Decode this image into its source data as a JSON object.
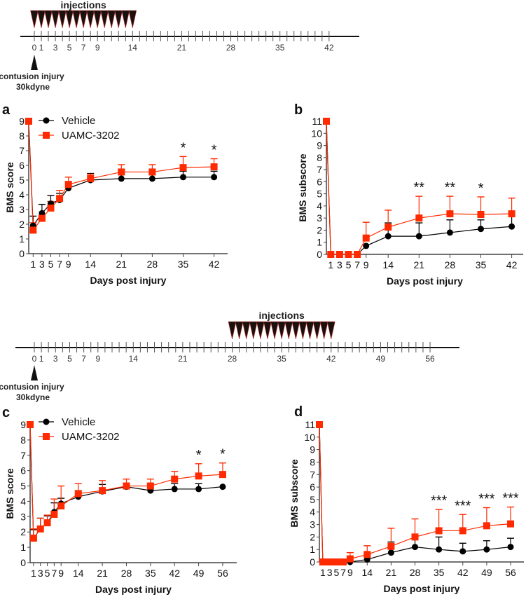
{
  "timelines": [
    {
      "injection_label": "injections",
      "tick_days_max": 42,
      "labeled_days": [
        0,
        1,
        3,
        5,
        7,
        9,
        14,
        21,
        28,
        35,
        42
      ],
      "injection_days": [
        0,
        14
      ],
      "injury_label": "contusion injury",
      "injury_force": "30kdyne"
    },
    {
      "injection_label": "injections",
      "tick_days_max": 56,
      "labeled_days": [
        0,
        1,
        3,
        5,
        7,
        9,
        14,
        21,
        28,
        35,
        42,
        49,
        56
      ],
      "injection_days": [
        28,
        42
      ],
      "injury_label": "contusion injury",
      "injury_force": "30kdyne"
    }
  ],
  "colors": {
    "vehicle": "#000000",
    "uamc": "#ff2a00"
  },
  "chart_data": [
    {
      "panel": "a",
      "type": "line",
      "ylabel": "BMS score",
      "xlabel": "Days post injury",
      "ylim": [
        0,
        9
      ],
      "yticks": [
        0,
        1,
        2,
        3,
        4,
        5,
        6,
        7,
        8,
        9
      ],
      "xticks": [
        1,
        3,
        5,
        7,
        9,
        14,
        21,
        28,
        35,
        42
      ],
      "x": [
        0,
        1,
        3,
        5,
        7,
        9,
        14,
        21,
        28,
        35,
        42
      ],
      "legend": [
        "Vehicle",
        "UAMC-3202"
      ],
      "series": [
        {
          "name": "Vehicle",
          "values": [
            9,
            1.9,
            2.75,
            3.4,
            3.65,
            4.45,
            5.0,
            5.1,
            5.1,
            5.2,
            5.2
          ],
          "upper": [
            null,
            2.55,
            3.35,
            3.95,
            4.1,
            4.9,
            5.45,
            5.65,
            5.4,
            5.6,
            5.6
          ]
        },
        {
          "name": "UAMC-3202",
          "values": [
            9,
            1.6,
            2.4,
            3.1,
            3.75,
            4.7,
            5.1,
            5.55,
            5.55,
            5.85,
            5.9
          ],
          "upper": [
            null,
            2.1,
            2.45,
            3.55,
            4.3,
            5.2,
            5.4,
            6.05,
            6.05,
            6.6,
            6.45
          ]
        }
      ],
      "significance": [
        {
          "x": 35,
          "label": "*"
        },
        {
          "x": 42,
          "label": "*"
        }
      ]
    },
    {
      "panel": "b",
      "type": "line",
      "ylabel": "BMS subscore",
      "xlabel": "Days post injury",
      "ylim": [
        0,
        11
      ],
      "yticks": [
        0,
        1,
        2,
        3,
        4,
        5,
        6,
        7,
        8,
        9,
        10,
        11
      ],
      "xticks": [
        1,
        3,
        5,
        7,
        9,
        14,
        21,
        28,
        35,
        42
      ],
      "x": [
        0,
        1,
        3,
        5,
        7,
        9,
        14,
        21,
        28,
        35,
        42
      ],
      "series": [
        {
          "name": "Vehicle",
          "values": [
            11,
            0,
            0,
            0,
            0,
            0.7,
            1.5,
            1.5,
            1.8,
            2.1,
            2.3
          ],
          "upper": [
            null,
            null,
            null,
            null,
            null,
            null,
            2.6,
            2.6,
            2.85,
            2.85,
            3.5
          ]
        },
        {
          "name": "UAMC-3202",
          "values": [
            11,
            0,
            0,
            0,
            0,
            1.35,
            2.25,
            3.0,
            3.35,
            3.3,
            3.35
          ],
          "upper": [
            null,
            null,
            null,
            null,
            null,
            2.65,
            3.65,
            4.8,
            4.8,
            4.75,
            4.65
          ]
        }
      ],
      "significance": [
        {
          "x": 21,
          "label": "**"
        },
        {
          "x": 28,
          "label": "**"
        },
        {
          "x": 35,
          "label": "*"
        }
      ]
    },
    {
      "panel": "c",
      "type": "line",
      "ylabel": "BMS score",
      "xlabel": "Days post injury",
      "ylim": [
        0,
        9
      ],
      "yticks": [
        0,
        1,
        2,
        3,
        4,
        5,
        6,
        7,
        8,
        9
      ],
      "xticks": [
        1,
        3,
        5,
        7,
        9,
        14,
        21,
        28,
        35,
        42,
        49,
        56
      ],
      "x": [
        0,
        1,
        3,
        5,
        7,
        9,
        14,
        21,
        28,
        35,
        42,
        49,
        56
      ],
      "legend": [
        "Vehicle",
        "UAMC-3202"
      ],
      "series": [
        {
          "name": "Vehicle",
          "values": [
            9,
            1.6,
            2.2,
            2.6,
            3.3,
            3.85,
            4.3,
            4.65,
            4.95,
            4.7,
            4.8,
            4.8,
            4.95
          ],
          "upper": [
            null,
            2.15,
            2.9,
            3.05,
            3.9,
            4.2,
            4.7,
            5.1,
            5.0,
            5.15,
            5.15,
            5.15,
            null
          ]
        },
        {
          "name": "UAMC-3202",
          "values": [
            9,
            1.6,
            2.2,
            2.6,
            3.15,
            3.7,
            4.5,
            4.7,
            5.0,
            5.0,
            5.45,
            5.65,
            5.75
          ],
          "upper": [
            null,
            2.2,
            2.9,
            3.1,
            4.15,
            5.0,
            5.15,
            5.35,
            5.45,
            5.45,
            5.95,
            6.45,
            6.5
          ]
        }
      ],
      "significance": [
        {
          "x": 49,
          "label": "*"
        },
        {
          "x": 56,
          "label": "*"
        }
      ]
    },
    {
      "panel": "d",
      "type": "line",
      "ylabel": "BMS subscore",
      "xlabel": "Days post injury",
      "ylim": [
        0,
        11
      ],
      "yticks": [
        0,
        1,
        2,
        3,
        4,
        5,
        6,
        7,
        8,
        9,
        10,
        11
      ],
      "xticks": [
        1,
        3,
        5,
        7,
        9,
        14,
        21,
        28,
        35,
        42,
        49,
        56
      ],
      "x": [
        0,
        1,
        3,
        5,
        7,
        9,
        14,
        21,
        28,
        35,
        42,
        49,
        56
      ],
      "series": [
        {
          "name": "Vehicle",
          "values": [
            11,
            0,
            0,
            0,
            0,
            0,
            0.2,
            0.75,
            1.2,
            1.0,
            0.85,
            1.0,
            1.2
          ],
          "upper": [
            null,
            null,
            null,
            null,
            null,
            null,
            0.65,
            1.6,
            1.85,
            2.0,
            1.5,
            1.7,
            1.9
          ]
        },
        {
          "name": "UAMC-3202",
          "values": [
            11,
            0,
            0,
            0,
            0,
            0.25,
            0.6,
            1.25,
            2.0,
            2.5,
            2.5,
            2.9,
            3.05
          ],
          "upper": [
            null,
            null,
            null,
            null,
            null,
            0.75,
            1.3,
            2.7,
            3.45,
            4.2,
            3.8,
            4.35,
            4.4
          ]
        }
      ],
      "significance": [
        {
          "x": 35,
          "label": "***"
        },
        {
          "x": 42,
          "label": "***"
        },
        {
          "x": 49,
          "label": "***"
        },
        {
          "x": 56,
          "label": "***"
        }
      ]
    }
  ]
}
